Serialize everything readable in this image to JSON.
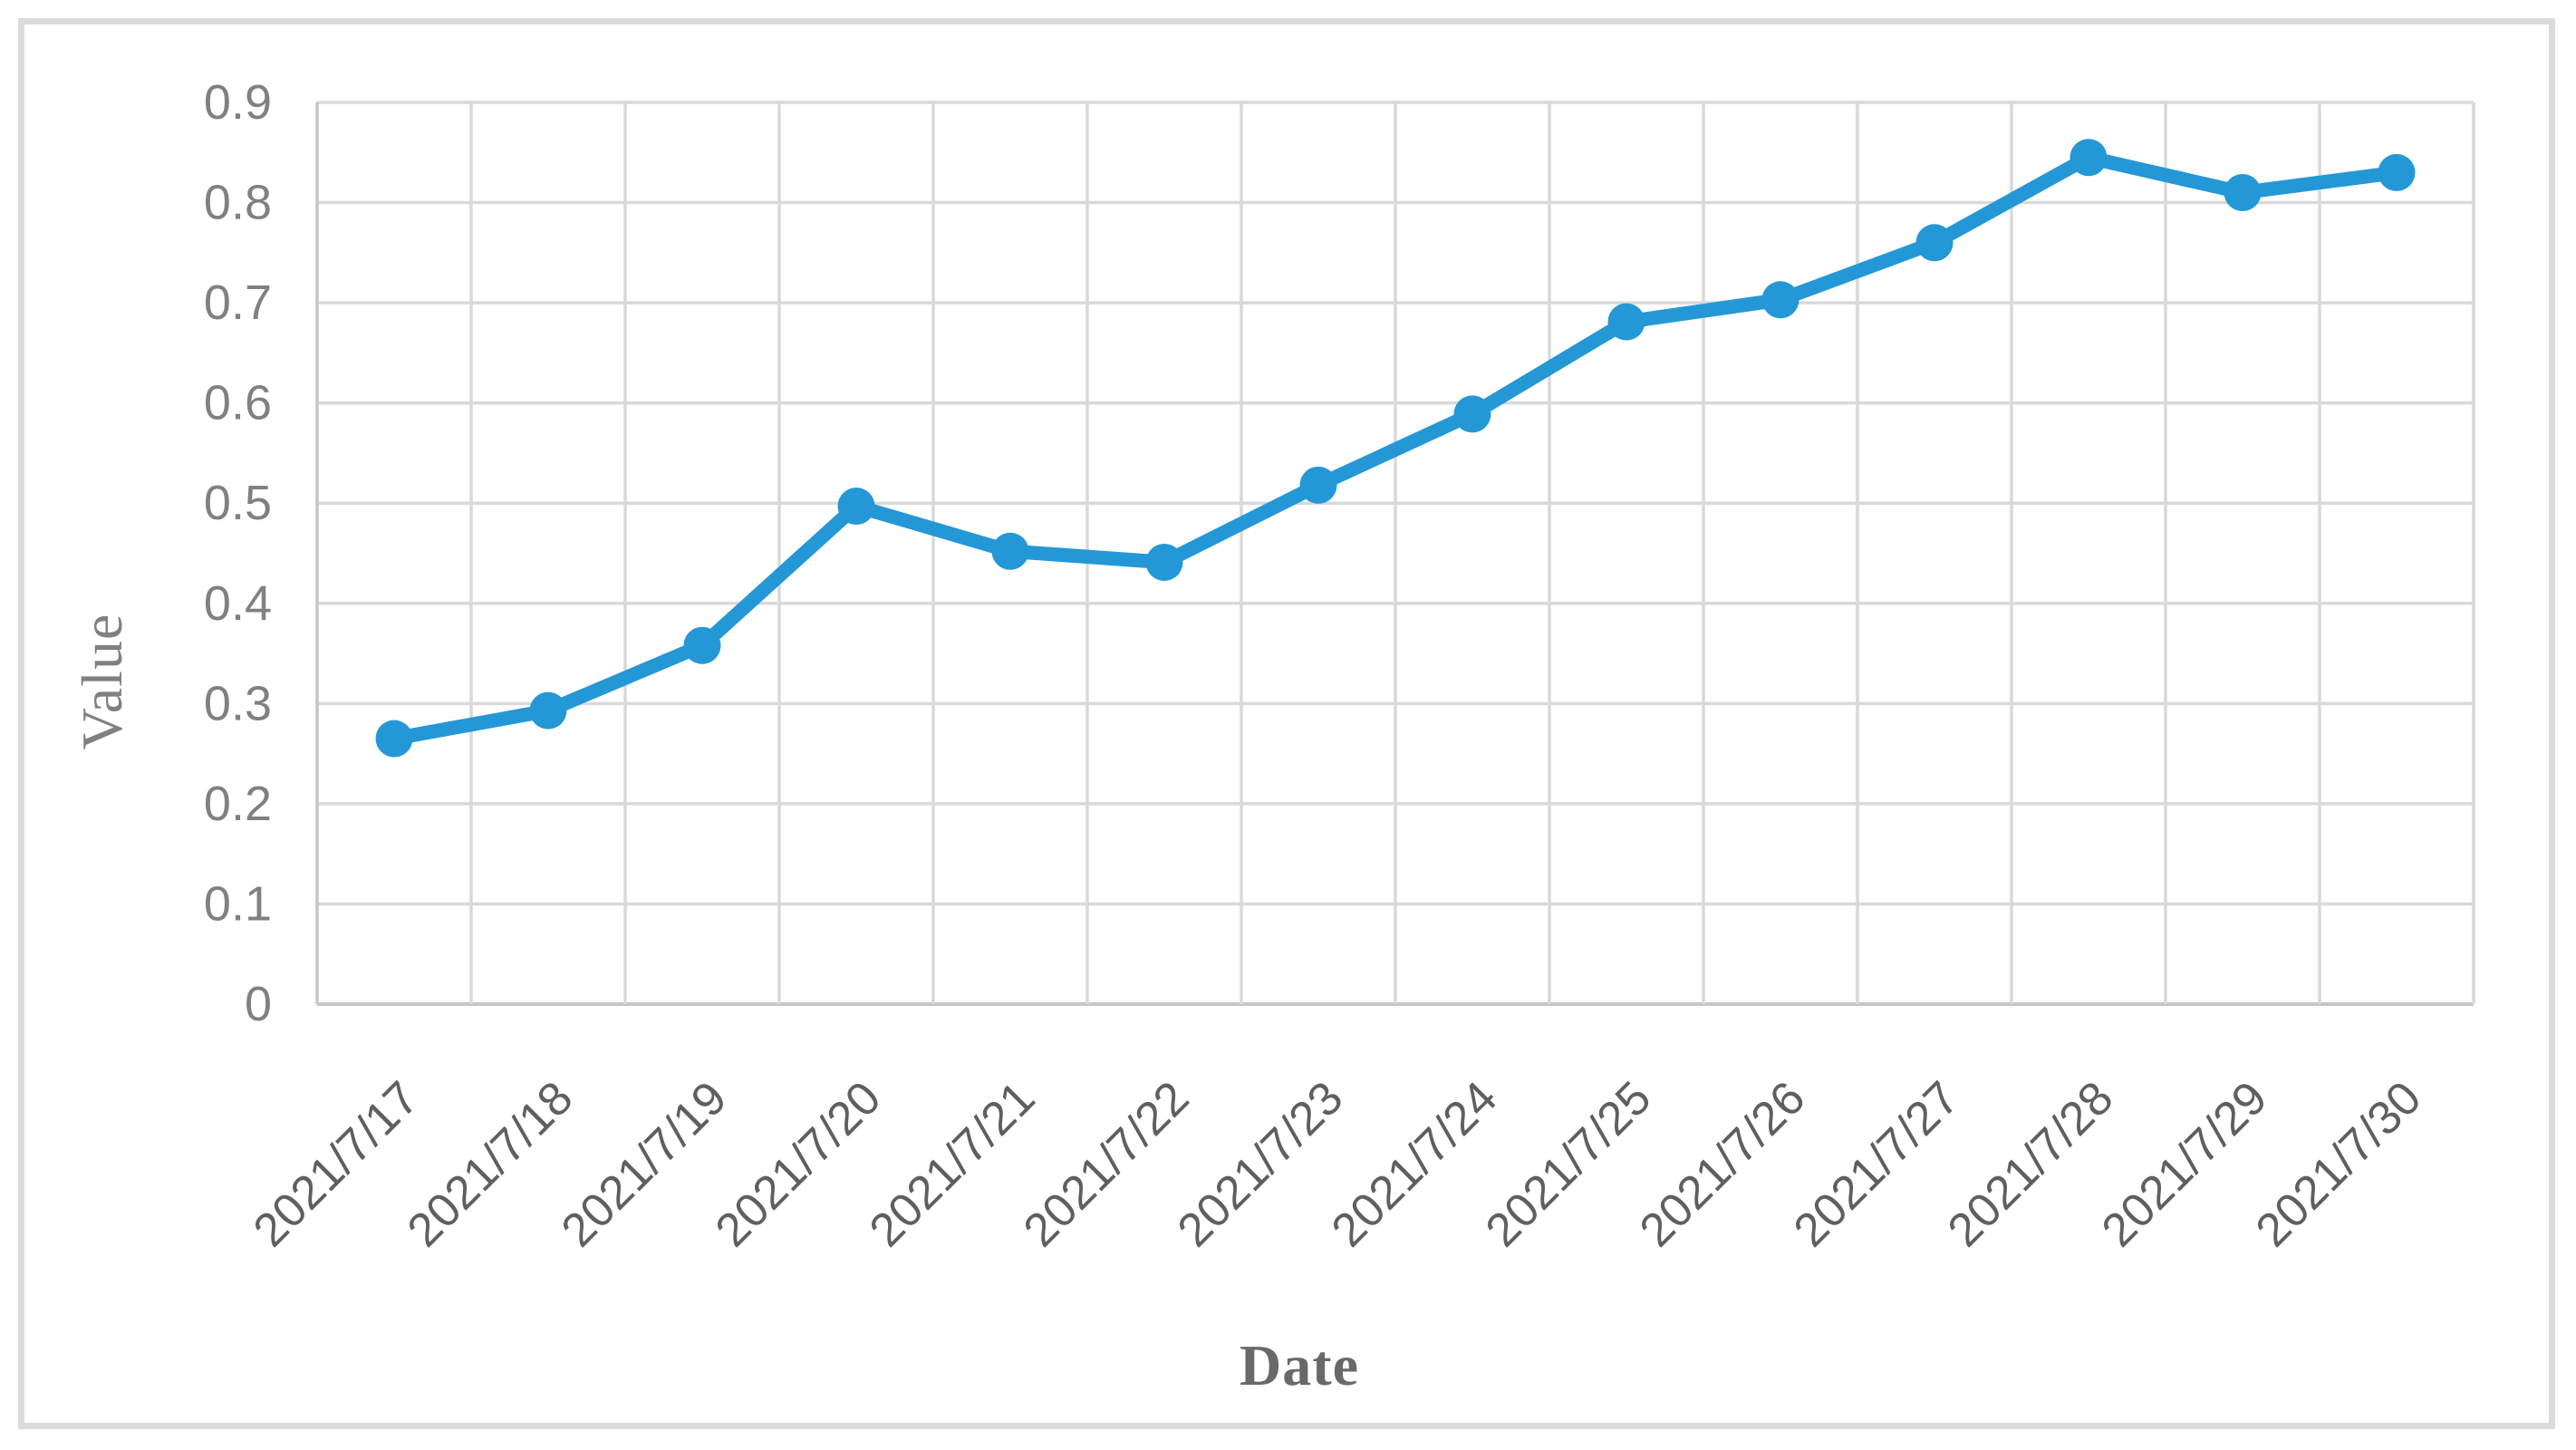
{
  "figure": {
    "background": "#FFFFFF",
    "border_color": "#DBDBDB"
  },
  "chart_data": {
    "type": "line",
    "title": "",
    "xlabel": "Date",
    "ylabel": "Value",
    "categories": [
      "2021/7/17",
      "2021/7/18",
      "2021/7/19",
      "2021/7/20",
      "2021/7/21",
      "2021/7/22",
      "2021/7/23",
      "2021/7/24",
      "2021/7/25",
      "2021/7/26",
      "2021/7/27",
      "2021/7/28",
      "2021/7/29",
      "2021/7/30"
    ],
    "series": [
      {
        "name": "Value",
        "values": [
          0.265,
          0.293,
          0.358,
          0.497,
          0.452,
          0.441,
          0.518,
          0.589,
          0.681,
          0.703,
          0.76,
          0.845,
          0.81,
          0.83
        ],
        "color": "#2498D6",
        "marker": "circle"
      }
    ],
    "ylim": [
      0,
      0.9
    ],
    "ytick_labels": [
      "0",
      "0.1",
      "0.2",
      "0.3",
      "0.4",
      "0.5",
      "0.6",
      "0.7",
      "0.8",
      "0.9"
    ],
    "xtick_rotation_deg": 45,
    "grid": true,
    "legend": "none",
    "styles": {
      "grid_color": "#D9D9D9",
      "axis_color": "#C6C6C6",
      "ytick_color": "#808080",
      "xtick_color": "#5F5F5F",
      "ylabel_color": "#808080",
      "xlabel_color": "#696969"
    }
  }
}
